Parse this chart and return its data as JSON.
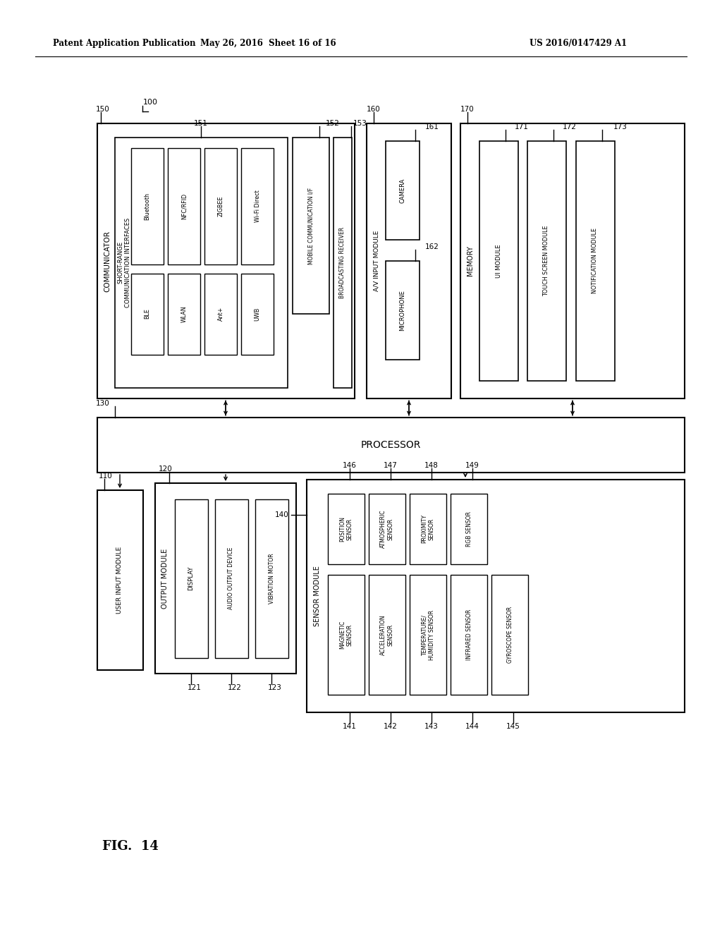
{
  "header_left": "Patent Application Publication",
  "header_mid": "May 26, 2016  Sheet 16 of 16",
  "header_right": "US 2016/0147429 A1",
  "fig_label": "FIG. 14",
  "bg_color": "#ffffff"
}
